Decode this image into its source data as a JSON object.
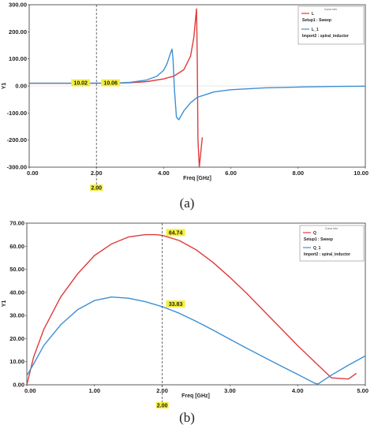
{
  "chart_data": [
    {
      "type": "line",
      "caption": "(a)",
      "xlabel": "Freq [GHz]",
      "ylabel": "Y1",
      "xlim": [
        0,
        10
      ],
      "ylim": [
        -300,
        300
      ],
      "x_ticks": [
        "0.00",
        "2.00",
        "4.00",
        "6.00",
        "8.00",
        "10.00"
      ],
      "y_ticks": [
        "300.00",
        "200.00",
        "100.00",
        "0.00",
        "-100.00",
        "-200.00",
        "-300.00"
      ],
      "grid": false,
      "legend_position": "top-right",
      "legend_title": "Curve Info",
      "marker": {
        "x": 2.0,
        "x_label": "2.00",
        "values": [
          {
            "label": "10.02",
            "value": 10.02
          },
          {
            "label": "10.06",
            "value": 10.06
          }
        ]
      },
      "series": [
        {
          "name": "L",
          "source": "Setup1 : Sweep",
          "color": "#e03a3a",
          "x": [
            0,
            0.5,
            1,
            1.5,
            2,
            2.5,
            3,
            3.5,
            4,
            4.3,
            4.6,
            4.8,
            4.9,
            4.95,
            4.98,
            5.0,
            5.02,
            5.06,
            5.1,
            5.15
          ],
          "y": [
            9.9,
            9.9,
            10.0,
            10.0,
            10.02,
            10.3,
            12,
            16,
            26,
            36,
            60,
            110,
            180,
            250,
            285,
            100,
            -200,
            -300,
            -250,
            -190
          ]
        },
        {
          "name": "L_1",
          "source": "Import2 : spiral_inductor",
          "color": "#3d8fd4",
          "x": [
            0,
            0.5,
            1,
            1.5,
            2,
            2.5,
            3,
            3.5,
            3.8,
            4.0,
            4.1,
            4.2,
            4.25,
            4.28,
            4.32,
            4.38,
            4.45,
            4.6,
            4.8,
            5.0,
            5.5,
            6,
            7,
            8,
            9,
            10
          ],
          "y": [
            9.9,
            9.9,
            10.0,
            10.0,
            10.06,
            10.4,
            13,
            22,
            36,
            58,
            82,
            120,
            136,
            100,
            -10,
            -115,
            -125,
            -92,
            -62,
            -42,
            -22,
            -14,
            -7,
            -4,
            -2,
            -1
          ]
        }
      ]
    },
    {
      "type": "line",
      "caption": "(b)",
      "xlabel": "Freq [GHz]",
      "ylabel": "Y1",
      "xlim": [
        0,
        5
      ],
      "ylim": [
        0,
        70
      ],
      "x_ticks": [
        "0.00",
        "1.00",
        "2.00",
        "3.00",
        "4.00",
        "5.00"
      ],
      "y_ticks": [
        "70.00",
        "60.00",
        "50.00",
        "40.00",
        "30.00",
        "20.00",
        "10.00",
        "0.00"
      ],
      "grid": false,
      "legend_position": "top-right",
      "legend_title": "Curve Info",
      "marker": {
        "x": 2.0,
        "x_label": "2.00",
        "values": [
          {
            "label": "64.74",
            "value": 64.74
          },
          {
            "label": "33.83",
            "value": 33.83
          }
        ]
      },
      "series": [
        {
          "name": "Q",
          "source": "Setup1 : Sweep",
          "color": "#e03a3a",
          "x": [
            0,
            0.1,
            0.25,
            0.5,
            0.75,
            1.0,
            1.25,
            1.5,
            1.75,
            1.9,
            2.0,
            2.25,
            2.5,
            2.75,
            3.0,
            3.25,
            3.5,
            3.75,
            4.0,
            4.25,
            4.5,
            4.75,
            4.87
          ],
          "y": [
            0,
            12,
            24,
            38,
            48,
            56,
            61,
            64,
            65,
            65,
            64.74,
            62.5,
            58.5,
            53,
            46.5,
            39.5,
            32,
            24.5,
            17,
            10,
            3,
            2.5,
            5
          ]
        },
        {
          "name": "Q_1",
          "source": "Import2 : spiral_inductor",
          "color": "#3d8fd4",
          "x": [
            0,
            0.1,
            0.25,
            0.5,
            0.75,
            1.0,
            1.25,
            1.5,
            1.75,
            2.0,
            2.25,
            2.5,
            2.75,
            3.0,
            3.25,
            3.5,
            3.75,
            4.0,
            4.25,
            4.3,
            4.5,
            4.75,
            5.0
          ],
          "y": [
            4,
            9,
            17,
            26,
            32.5,
            36.5,
            38,
            37.5,
            36,
            33.83,
            31,
            27.5,
            23.7,
            19.7,
            15.8,
            12,
            8.2,
            4.5,
            0.7,
            0.3,
            4.2,
            8.5,
            12.5
          ]
        }
      ]
    }
  ]
}
